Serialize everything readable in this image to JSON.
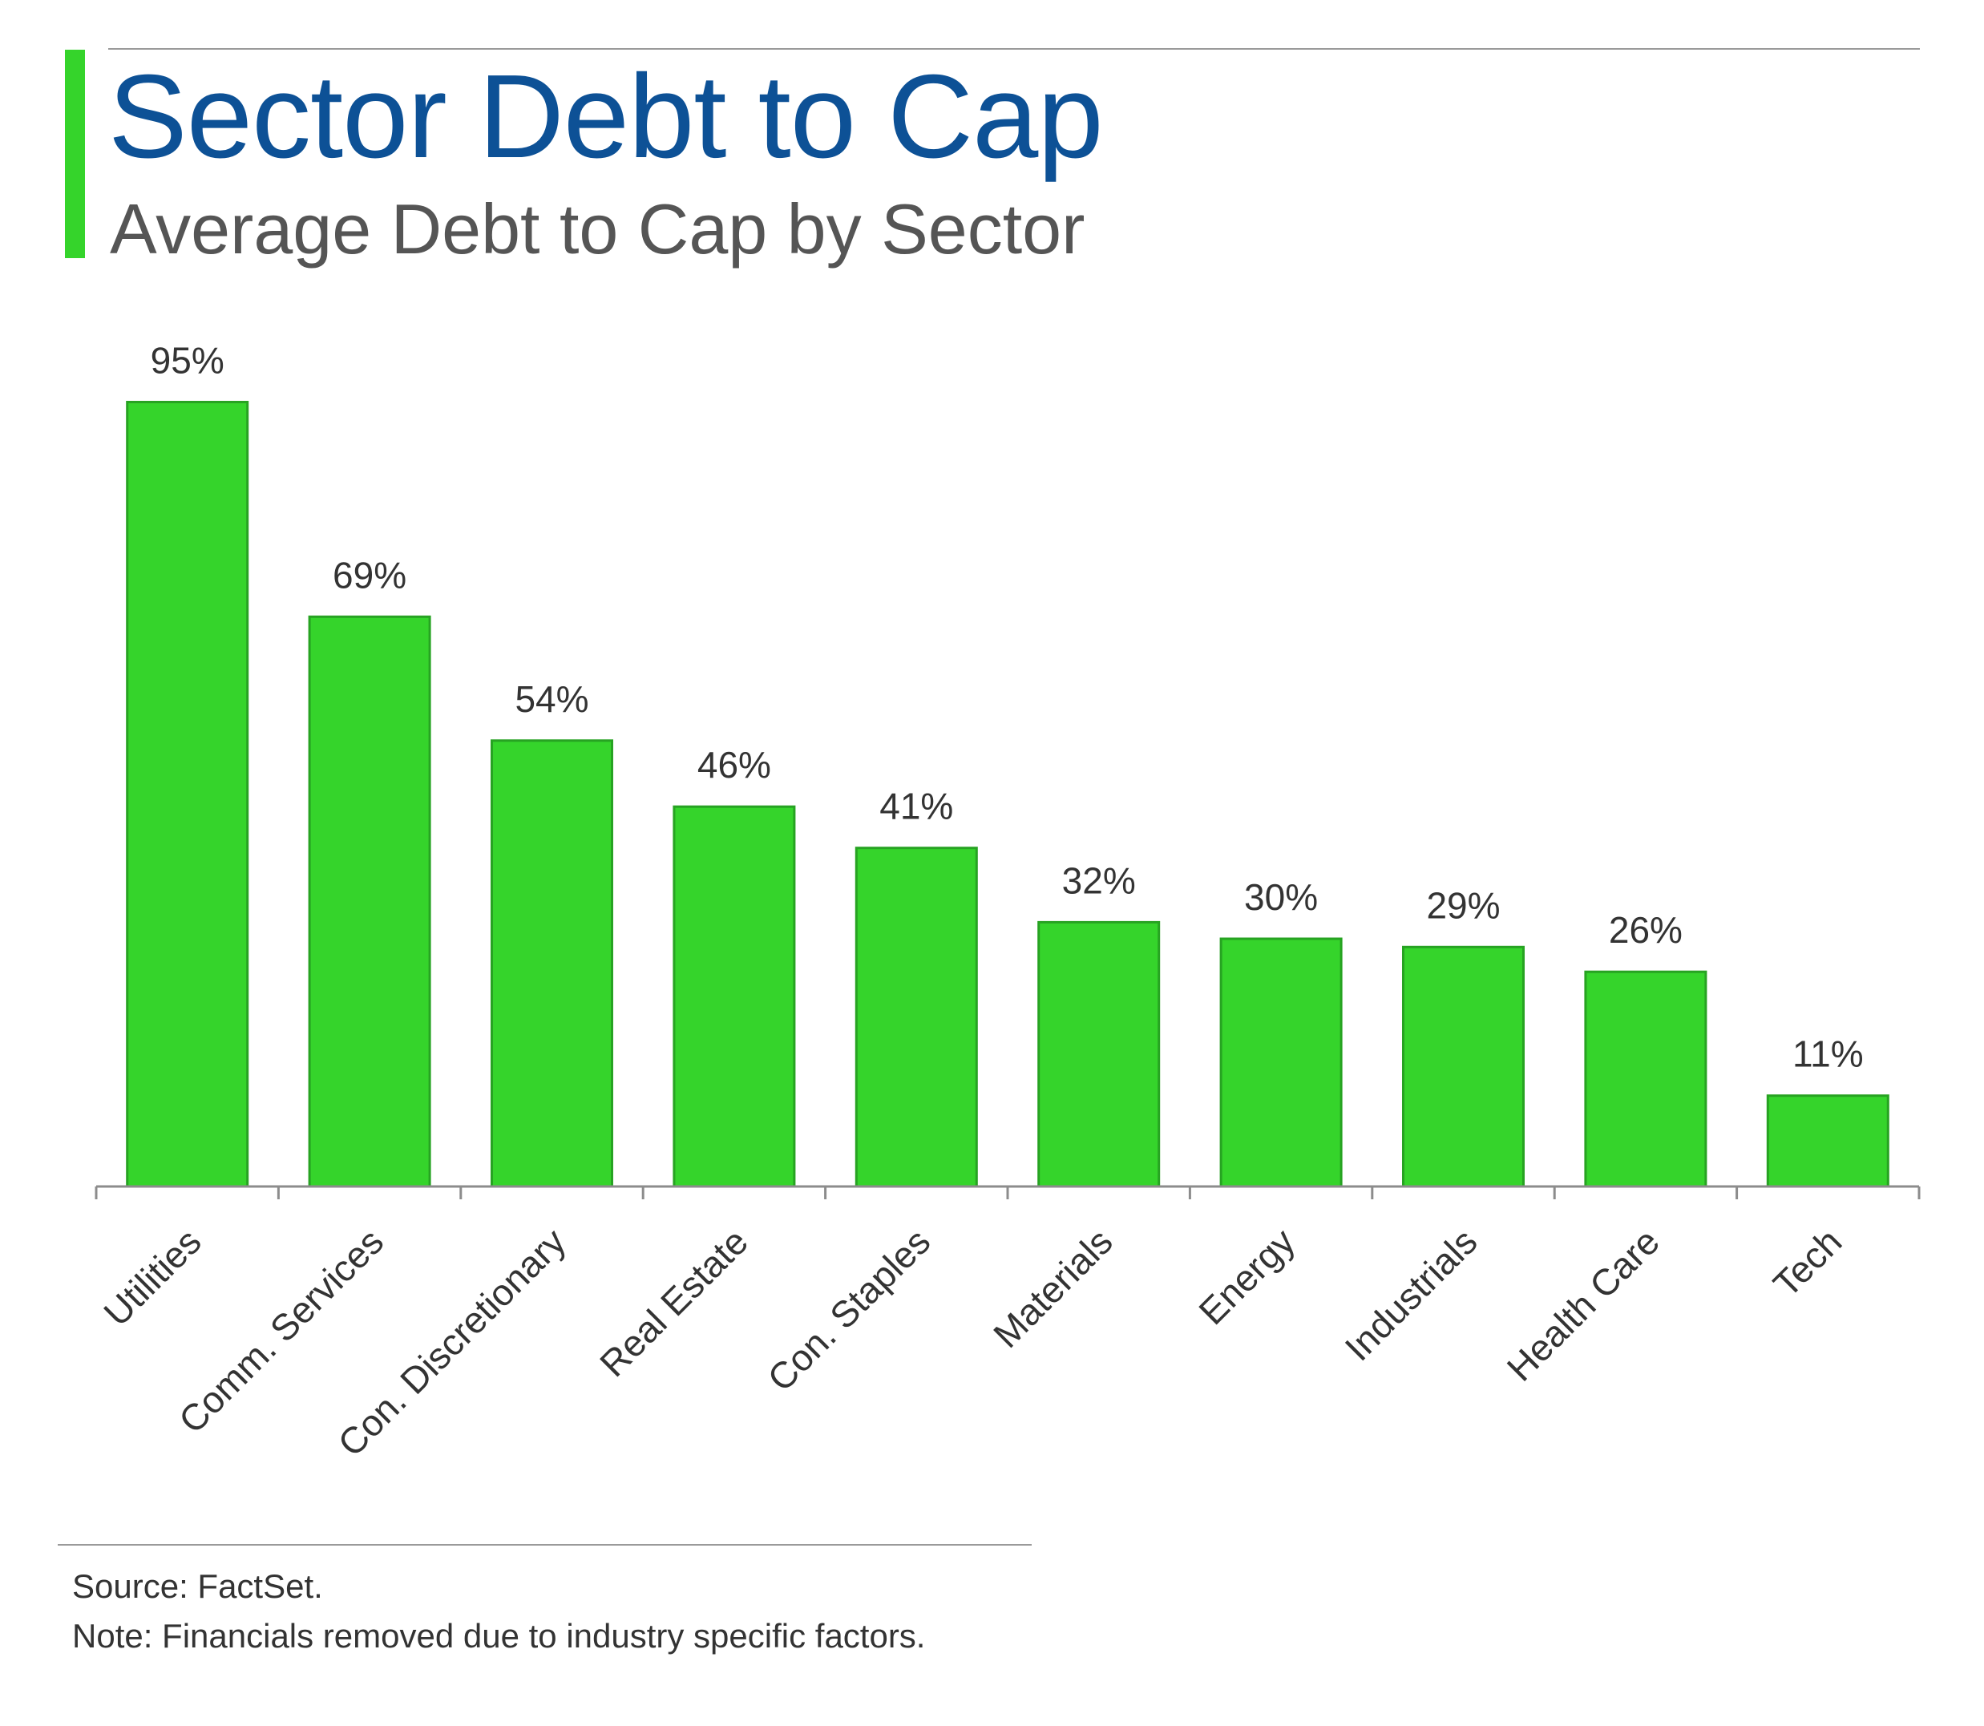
{
  "header": {
    "title": "Sector Debt to Cap",
    "subtitle": "Average Debt to Cap by Sector"
  },
  "footer": {
    "source": "Source: FactSet.",
    "note": "Note: Financials removed due to industry specific factors."
  },
  "colors": {
    "bar": "#35d42b",
    "bar_border": "#27a322",
    "title": "#0d5196",
    "text": "#333333",
    "axis": "#8c8c8c"
  },
  "chart_data": {
    "type": "bar",
    "title": "Sector Debt to Cap",
    "subtitle": "Average Debt to Cap by Sector",
    "categories": [
      "Utilities",
      "Comm. Services",
      "Con. Discretionary",
      "Real Estate",
      "Con. Staples",
      "Materials",
      "Energy",
      "Industrials",
      "Health Care",
      "Tech"
    ],
    "values": [
      95,
      69,
      54,
      46,
      41,
      32,
      30,
      29,
      26,
      11
    ],
    "data_labels": [
      "95%",
      "69%",
      "54%",
      "46%",
      "41%",
      "32%",
      "30%",
      "29%",
      "26%",
      "11%"
    ],
    "unit": "%",
    "xlabel": "",
    "ylabel": "",
    "ylim": [
      0,
      100
    ],
    "grid": false,
    "legend": "none"
  }
}
